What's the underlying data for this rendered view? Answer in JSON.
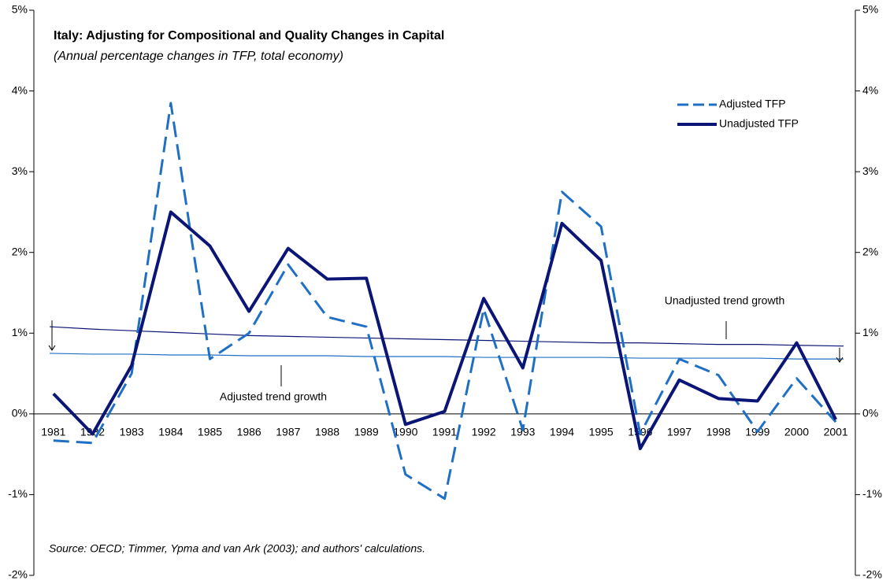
{
  "chart_data": {
    "type": "line",
    "title": "Italy: Adjusting for Compositional and Quality Changes in Capital",
    "subtitle": "(Annual percentage changes in TFP, total economy)",
    "source": "Source: OECD; Timmer, Ypma and van Ark (2003); and authors' calculations.",
    "categories": [
      "1981",
      "1982",
      "1983",
      "1984",
      "1985",
      "1986",
      "1987",
      "1988",
      "1989",
      "1990",
      "1991",
      "1992",
      "1993",
      "1994",
      "1995",
      "1996",
      "1997",
      "1998",
      "1999",
      "2000",
      "2001"
    ],
    "series": [
      {
        "name": "Adjusted TFP",
        "color": "#1f6fc5",
        "dashed": true,
        "values": [
          -0.33,
          -0.36,
          0.5,
          3.85,
          0.68,
          1.0,
          1.85,
          1.2,
          1.08,
          -0.75,
          -1.05,
          1.3,
          -0.2,
          2.75,
          2.32,
          -0.25,
          0.68,
          0.48,
          -0.22,
          0.44,
          -0.1
        ]
      },
      {
        "name": "Unadjusted TFP",
        "color": "#0b1576",
        "dashed": false,
        "values": [
          0.25,
          -0.25,
          0.6,
          2.5,
          2.08,
          1.27,
          2.05,
          1.67,
          1.68,
          -0.13,
          0.03,
          1.43,
          0.57,
          2.36,
          1.9,
          -0.43,
          0.42,
          0.19,
          0.16,
          0.88,
          -0.07
        ]
      }
    ],
    "trends": [
      {
        "label": "Unadjusted trend growth",
        "color": "#0b1576",
        "values": [
          1.08,
          1.05,
          1.03,
          1.01,
          0.99,
          0.97,
          0.96,
          0.95,
          0.94,
          0.93,
          0.92,
          0.91,
          0.9,
          0.89,
          0.88,
          0.88,
          0.87,
          0.86,
          0.86,
          0.85,
          0.84
        ]
      },
      {
        "label": "Adjusted trend growth",
        "color": "#1f6fc5",
        "values": [
          0.75,
          0.74,
          0.74,
          0.73,
          0.73,
          0.72,
          0.72,
          0.72,
          0.71,
          0.71,
          0.71,
          0.7,
          0.7,
          0.7,
          0.7,
          0.69,
          0.69,
          0.69,
          0.69,
          0.68,
          0.68
        ]
      }
    ],
    "ylim": [
      -2,
      5
    ],
    "yticks": [
      {
        "value": -2,
        "label": "-2%"
      },
      {
        "value": -1,
        "label": "-1%"
      },
      {
        "value": 0,
        "label": "0%"
      },
      {
        "value": 1,
        "label": "1%"
      },
      {
        "value": 2,
        "label": "2%"
      },
      {
        "value": 3,
        "label": "3%"
      },
      {
        "value": 4,
        "label": "4%"
      },
      {
        "value": 5,
        "label": "5%"
      }
    ],
    "y2lim": [
      -2,
      5
    ],
    "y2ticks": [
      {
        "value": -2,
        "label": "-2%"
      },
      {
        "value": -1,
        "label": "-1%"
      },
      {
        "value": 0,
        "label": "0%"
      },
      {
        "value": 1,
        "label": "1%"
      },
      {
        "value": 2,
        "label": "2%"
      },
      {
        "value": 3,
        "label": "3%"
      },
      {
        "value": 4,
        "label": "4%"
      },
      {
        "value": 5,
        "label": "5%"
      }
    ],
    "grid": false,
    "legend": "top-right"
  }
}
